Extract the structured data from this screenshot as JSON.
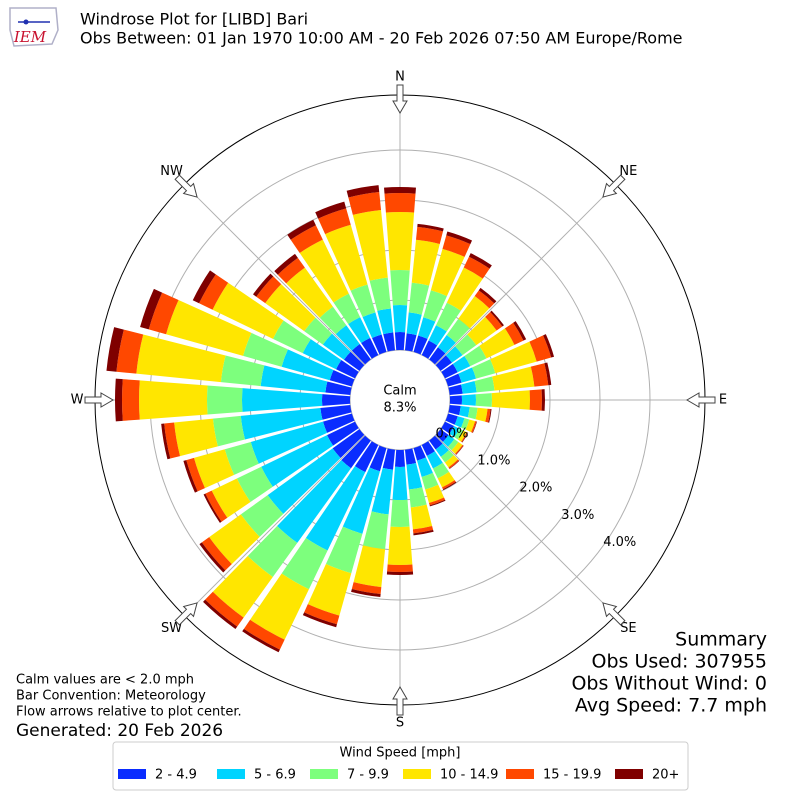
{
  "header": {
    "logo_text": "IEM",
    "title": "Windrose Plot for [LIBD] Bari",
    "subtitle": "Obs Between: 01 Jan 1970 10:00 AM - 20 Feb 2026 07:50 AM Europe/Rome"
  },
  "chart_data": {
    "type": "windrose",
    "calm_label": "Calm",
    "calm_text": "8.3%",
    "compass_labels": [
      "N",
      "NE",
      "E",
      "SE",
      "S",
      "SW",
      "W",
      "NW"
    ],
    "x": [
      0,
      10,
      20,
      30,
      40,
      50,
      60,
      70,
      80,
      90,
      100,
      110,
      120,
      130,
      140,
      150,
      160,
      170,
      180,
      190,
      200,
      210,
      220,
      230,
      240,
      250,
      260,
      270,
      280,
      290,
      300,
      310,
      320,
      330,
      340,
      350
    ],
    "rlim": [
      0,
      5.1
    ],
    "rticks": [
      {
        "value": 0,
        "label": "0.0%"
      },
      {
        "value": 1,
        "label": "1.0%"
      },
      {
        "value": 2,
        "label": "2.0%"
      },
      {
        "value": 3,
        "label": "3.0%"
      },
      {
        "value": 4,
        "label": "4.0%"
      }
    ],
    "grid": true,
    "legend_title": "Wind Speed [mph]",
    "series": [
      {
        "name": "2 - 4.9",
        "color": "#0a2cff",
        "values": [
          0.36,
          0.34,
          0.34,
          0.32,
          0.3,
          0.28,
          0.28,
          0.28,
          0.26,
          0.24,
          0.22,
          0.2,
          0.2,
          0.2,
          0.22,
          0.24,
          0.26,
          0.3,
          0.34,
          0.4,
          0.48,
          0.6,
          0.68,
          0.66,
          0.62,
          0.6,
          0.6,
          0.56,
          0.5,
          0.46,
          0.42,
          0.38,
          0.38,
          0.38,
          0.36,
          0.36
        ]
      },
      {
        "name": "5 - 6.9",
        "color": "#00d4ff",
        "values": [
          0.54,
          0.42,
          0.38,
          0.34,
          0.3,
          0.26,
          0.28,
          0.3,
          0.28,
          0.28,
          0.18,
          0.14,
          0.12,
          0.14,
          0.18,
          0.28,
          0.34,
          0.5,
          0.66,
          0.9,
          1.3,
          1.74,
          1.84,
          1.6,
          1.46,
          1.5,
          1.6,
          1.6,
          1.3,
          1.0,
          0.74,
          0.52,
          0.46,
          0.46,
          0.46,
          0.48
        ]
      },
      {
        "name": "7 - 9.9",
        "color": "#7dff7d",
        "values": [
          0.7,
          0.6,
          0.56,
          0.5,
          0.4,
          0.34,
          0.36,
          0.4,
          0.36,
          0.32,
          0.16,
          0.1,
          0.08,
          0.1,
          0.14,
          0.22,
          0.26,
          0.36,
          0.54,
          0.7,
          0.82,
          0.86,
          0.84,
          0.66,
          0.54,
          0.54,
          0.56,
          0.7,
          0.8,
          0.8,
          0.66,
          0.46,
          0.46,
          0.52,
          0.58,
          0.62
        ]
      },
      {
        "name": "10 - 14.9",
        "color": "#ffe600",
        "values": [
          1.16,
          0.86,
          0.86,
          0.78,
          0.56,
          0.5,
          0.62,
          0.86,
          0.8,
          0.76,
          0.2,
          0.12,
          0.08,
          0.1,
          0.12,
          0.2,
          0.28,
          0.44,
          0.76,
          0.76,
          0.88,
          1.12,
          1.0,
          0.78,
          0.56,
          0.64,
          0.78,
          1.36,
          1.7,
          1.6,
          1.34,
          0.96,
          0.96,
          1.2,
          1.24,
          1.36
        ]
      },
      {
        "name": "15 - 19.9",
        "color": "#ff4800",
        "values": [
          0.38,
          0.26,
          0.28,
          0.24,
          0.14,
          0.14,
          0.2,
          0.3,
          0.28,
          0.24,
          0.06,
          0.03,
          0.02,
          0.02,
          0.03,
          0.04,
          0.05,
          0.08,
          0.14,
          0.14,
          0.18,
          0.22,
          0.22,
          0.18,
          0.14,
          0.16,
          0.2,
          0.34,
          0.4,
          0.36,
          0.3,
          0.22,
          0.24,
          0.32,
          0.34,
          0.36
        ]
      },
      {
        "name": "20+",
        "color": "#7f0000",
        "values": [
          0.12,
          0.06,
          0.08,
          0.08,
          0.06,
          0.04,
          0.06,
          0.06,
          0.06,
          0.06,
          0.02,
          0.01,
          0.01,
          0.01,
          0.01,
          0.02,
          0.02,
          0.04,
          0.06,
          0.06,
          0.06,
          0.06,
          0.06,
          0.06,
          0.04,
          0.06,
          0.06,
          0.14,
          0.2,
          0.18,
          0.14,
          0.08,
          0.1,
          0.12,
          0.14,
          0.14
        ]
      }
    ]
  },
  "notes": [
    "Calm values are < 2.0 mph",
    "Bar Convention: Meteorology",
    "Flow arrows relative to plot center."
  ],
  "generated": "Generated: 20 Feb 2026",
  "summary": [
    "Summary",
    "Obs Used: 307955",
    "Obs Without Wind: 0",
    "Avg Speed: 7.7 mph"
  ]
}
